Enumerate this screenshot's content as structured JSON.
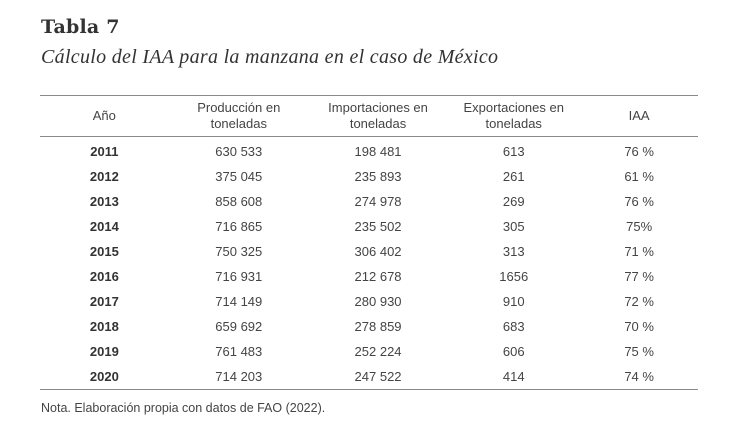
{
  "table": {
    "number": "Tabla 7",
    "title": "Cálculo del IAA para la manzana en el caso de México",
    "headers": {
      "year": "Año",
      "production_line1": "Producción en",
      "production_line2": "toneladas",
      "imports_line1": "Importaciones en",
      "imports_line2": "toneladas",
      "exports_line1": "Exportaciones en",
      "exports_line2": "toneladas",
      "iaa": "IAA"
    },
    "rows": [
      {
        "year": "2011",
        "production": "630 533",
        "imports": "198 481",
        "exports": "613",
        "iaa": "76 %"
      },
      {
        "year": "2012",
        "production": "375 045",
        "imports": "235 893",
        "exports": "261",
        "iaa": "61 %"
      },
      {
        "year": "2013",
        "production": "858 608",
        "imports": "274 978",
        "exports": "269",
        "iaa": "76 %"
      },
      {
        "year": "2014",
        "production": "716 865",
        "imports": "235 502",
        "exports": "305",
        "iaa": "75%"
      },
      {
        "year": "2015",
        "production": "750 325",
        "imports": "306 402",
        "exports": "313",
        "iaa": "71 %"
      },
      {
        "year": "2016",
        "production": "716 931",
        "imports": "212 678",
        "exports": "1656",
        "iaa": "77 %"
      },
      {
        "year": "2017",
        "production": "714 149",
        "imports": "280 930",
        "exports": "910",
        "iaa": "72 %"
      },
      {
        "year": "2018",
        "production": "659 692",
        "imports": "278 859",
        "exports": "683",
        "iaa": "70 %"
      },
      {
        "year": "2019",
        "production": "761 483",
        "imports": "252 224",
        "exports": "606",
        "iaa": "75 %"
      },
      {
        "year": "2020",
        "production": "714 203",
        "imports": "247 522",
        "exports": "414",
        "iaa": "74 %"
      }
    ],
    "note": "Nota. Elaboración propia con datos de FAO (2022)."
  }
}
